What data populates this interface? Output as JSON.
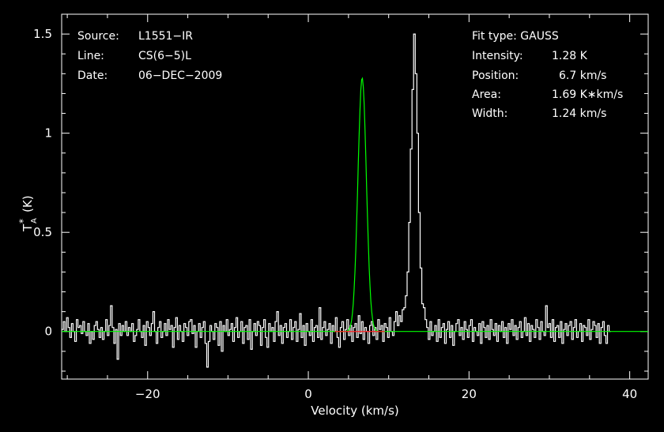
{
  "chart_data": {
    "type": "line",
    "title": "",
    "xlabel": "Velocity (km/s)",
    "ylabel": "T",
    "ylabel_sub": "A",
    "ylabel_sup": "*",
    "ylabel_unit": "(K)",
    "xlim": [
      -30.7,
      42.3
    ],
    "ylim": [
      -0.24,
      1.6
    ],
    "x_ticks": [
      -20,
      0,
      20,
      40
    ],
    "x_tick_labels": [
      "−20",
      "0",
      "20",
      "40"
    ],
    "y_ticks": [
      0,
      0.5,
      1,
      1.5
    ],
    "y_tick_labels": [
      "0",
      "0.5",
      "1",
      "1.5"
    ],
    "grid": false,
    "info_left": [
      {
        "key": "Source:",
        "value": "L1551−IR"
      },
      {
        "key": "Line:",
        "value": "CS(6−5)L"
      },
      {
        "key": "Date:",
        "value": "06−DEC−2009"
      }
    ],
    "info_right": {
      "fit_type": "Fit type: GAUSS",
      "rows": [
        {
          "key": "Intensity:",
          "value": "1.28 K"
        },
        {
          "key": "Position:",
          "value": "6.7 km/s"
        },
        {
          "key": "Area:",
          "value": "1.69 K∗km/s"
        },
        {
          "key": "Width:",
          "value": "1.24 km/s"
        }
      ]
    },
    "series": [
      {
        "kind": "spectrum",
        "color": "#ffffff",
        "x_start": -30.7,
        "dx": 0.2028,
        "values": [
          0.01,
          0.05,
          0.0,
          0.07,
          0.02,
          -0.03,
          0.04,
          0.0,
          -0.05,
          0.06,
          0.02,
          0.03,
          -0.01,
          0.05,
          0.0,
          -0.02,
          0.04,
          -0.06,
          0.0,
          -0.04,
          0.03,
          0.05,
          0.01,
          -0.03,
          0.02,
          -0.04,
          0.0,
          0.06,
          -0.02,
          0.03,
          0.13,
          0.02,
          -0.06,
          0.01,
          -0.14,
          0.04,
          -0.02,
          0.03,
          0.0,
          0.05,
          -0.02,
          0.02,
          0.0,
          0.04,
          -0.05,
          -0.02,
          0.01,
          0.06,
          0.0,
          -0.03,
          0.03,
          -0.07,
          0.05,
          0.02,
          -0.02,
          0.04,
          0.1,
          0.0,
          -0.06,
          0.02,
          0.05,
          -0.03,
          0.0,
          0.04,
          -0.02,
          0.06,
          0.01,
          0.03,
          -0.08,
          0.02,
          0.07,
          -0.04,
          0.03,
          0.0,
          -0.05,
          0.04,
          0.02,
          -0.02,
          0.05,
          0.06,
          -0.01,
          0.03,
          -0.08,
          0.0,
          0.04,
          -0.03,
          0.02,
          0.05,
          -0.06,
          -0.18,
          -0.05,
          0.03,
          0.0,
          -0.04,
          0.04,
          0.02,
          -0.07,
          0.05,
          -0.1,
          0.03,
          0.0,
          0.06,
          -0.02,
          0.01,
          0.04,
          -0.05,
          0.02,
          0.07,
          -0.03,
          0.0,
          0.05,
          -0.06,
          0.02,
          0.03,
          -0.04,
          0.06,
          -0.09,
          0.0,
          0.04,
          -0.02,
          0.05,
          0.03,
          -0.07,
          0.02,
          0.06,
          -0.03,
          -0.08,
          0.04,
          0.0,
          0.02,
          -0.05,
          0.05,
          0.1,
          -0.02,
          0.03,
          -0.06,
          0.02,
          0.04,
          -0.03,
          0.0,
          0.06,
          -0.04,
          0.02,
          0.05,
          -0.05,
          0.01,
          0.09,
          -0.03,
          0.03,
          -0.07,
          0.04,
          0.0,
          -0.02,
          0.06,
          -0.05,
          0.02,
          0.03,
          -0.03,
          0.12,
          -0.04,
          0.02,
          0.05,
          -0.02,
          0.01,
          0.04,
          -0.06,
          0.03,
          0.0,
          0.07,
          -0.03,
          -0.08,
          0.02,
          0.05,
          -0.04,
          0.01,
          0.06,
          -0.02,
          0.03,
          -0.05,
          0.02,
          0.04,
          -0.03,
          0.08,
          -0.01,
          0.05,
          -0.04,
          0.02,
          0.0,
          -0.06,
          0.03,
          0.05,
          -0.02,
          0.02,
          -0.04,
          0.06,
          0.01,
          0.03,
          -0.05,
          0.04,
          0.02,
          -0.03,
          0.07,
          0.0,
          -0.02,
          0.05,
          0.1,
          0.03,
          0.08,
          0.05,
          0.11,
          0.12,
          0.18,
          0.3,
          0.55,
          0.92,
          1.22,
          1.5,
          1.3,
          1.0,
          0.6,
          0.32,
          0.14,
          0.12,
          0.06,
          0.02,
          -0.04,
          0.05,
          -0.02,
          0.0,
          0.03,
          -0.05,
          0.06,
          -0.03,
          0.02,
          0.04,
          -0.06,
          0.01,
          0.05,
          -0.03,
          0.03,
          -0.07,
          0.0,
          0.04,
          0.06,
          -0.02,
          0.02,
          -0.04,
          0.05,
          0.01,
          -0.03,
          0.03,
          0.06,
          -0.05,
          0.02,
          0.0,
          -0.02,
          0.04,
          -0.06,
          0.05,
          0.02,
          -0.03,
          0.03,
          -0.04,
          0.06,
          0.01,
          -0.02,
          0.04,
          -0.05,
          0.03,
          0.0,
          0.05,
          -0.03,
          0.02,
          -0.06,
          0.04,
          0.01,
          0.06,
          -0.02,
          0.03,
          -0.04,
          0.02,
          0.05,
          -0.03,
          0.0,
          0.07,
          -0.02,
          0.04,
          -0.05,
          0.03,
          0.01,
          -0.03,
          0.06,
          0.02,
          -0.04,
          0.05,
          0.0,
          -0.02,
          0.13,
          0.02,
          0.04,
          -0.03,
          0.06,
          -0.05,
          0.02,
          0.03,
          -0.03,
          0.05,
          -0.06,
          0.01,
          0.04,
          -0.02,
          0.03,
          0.05,
          -0.04,
          0.02,
          0.06,
          -0.03,
          0.0,
          0.04,
          -0.05,
          0.03,
          0.02,
          -0.02,
          0.06,
          -0.04,
          0.01,
          0.05,
          0.03,
          -0.03,
          0.04,
          -0.06,
          0.02,
          0.05,
          -0.02,
          -0.06,
          0.03,
          0.0
        ]
      },
      {
        "kind": "gaussian_fit",
        "color": "#00ff00",
        "amplitude": 1.28,
        "center": 6.7,
        "fwhm": 1.24
      },
      {
        "kind": "baseline",
        "color": "#ff2020",
        "x": [
          3.3,
          9.5
        ],
        "y": [
          0,
          0
        ]
      }
    ]
  }
}
